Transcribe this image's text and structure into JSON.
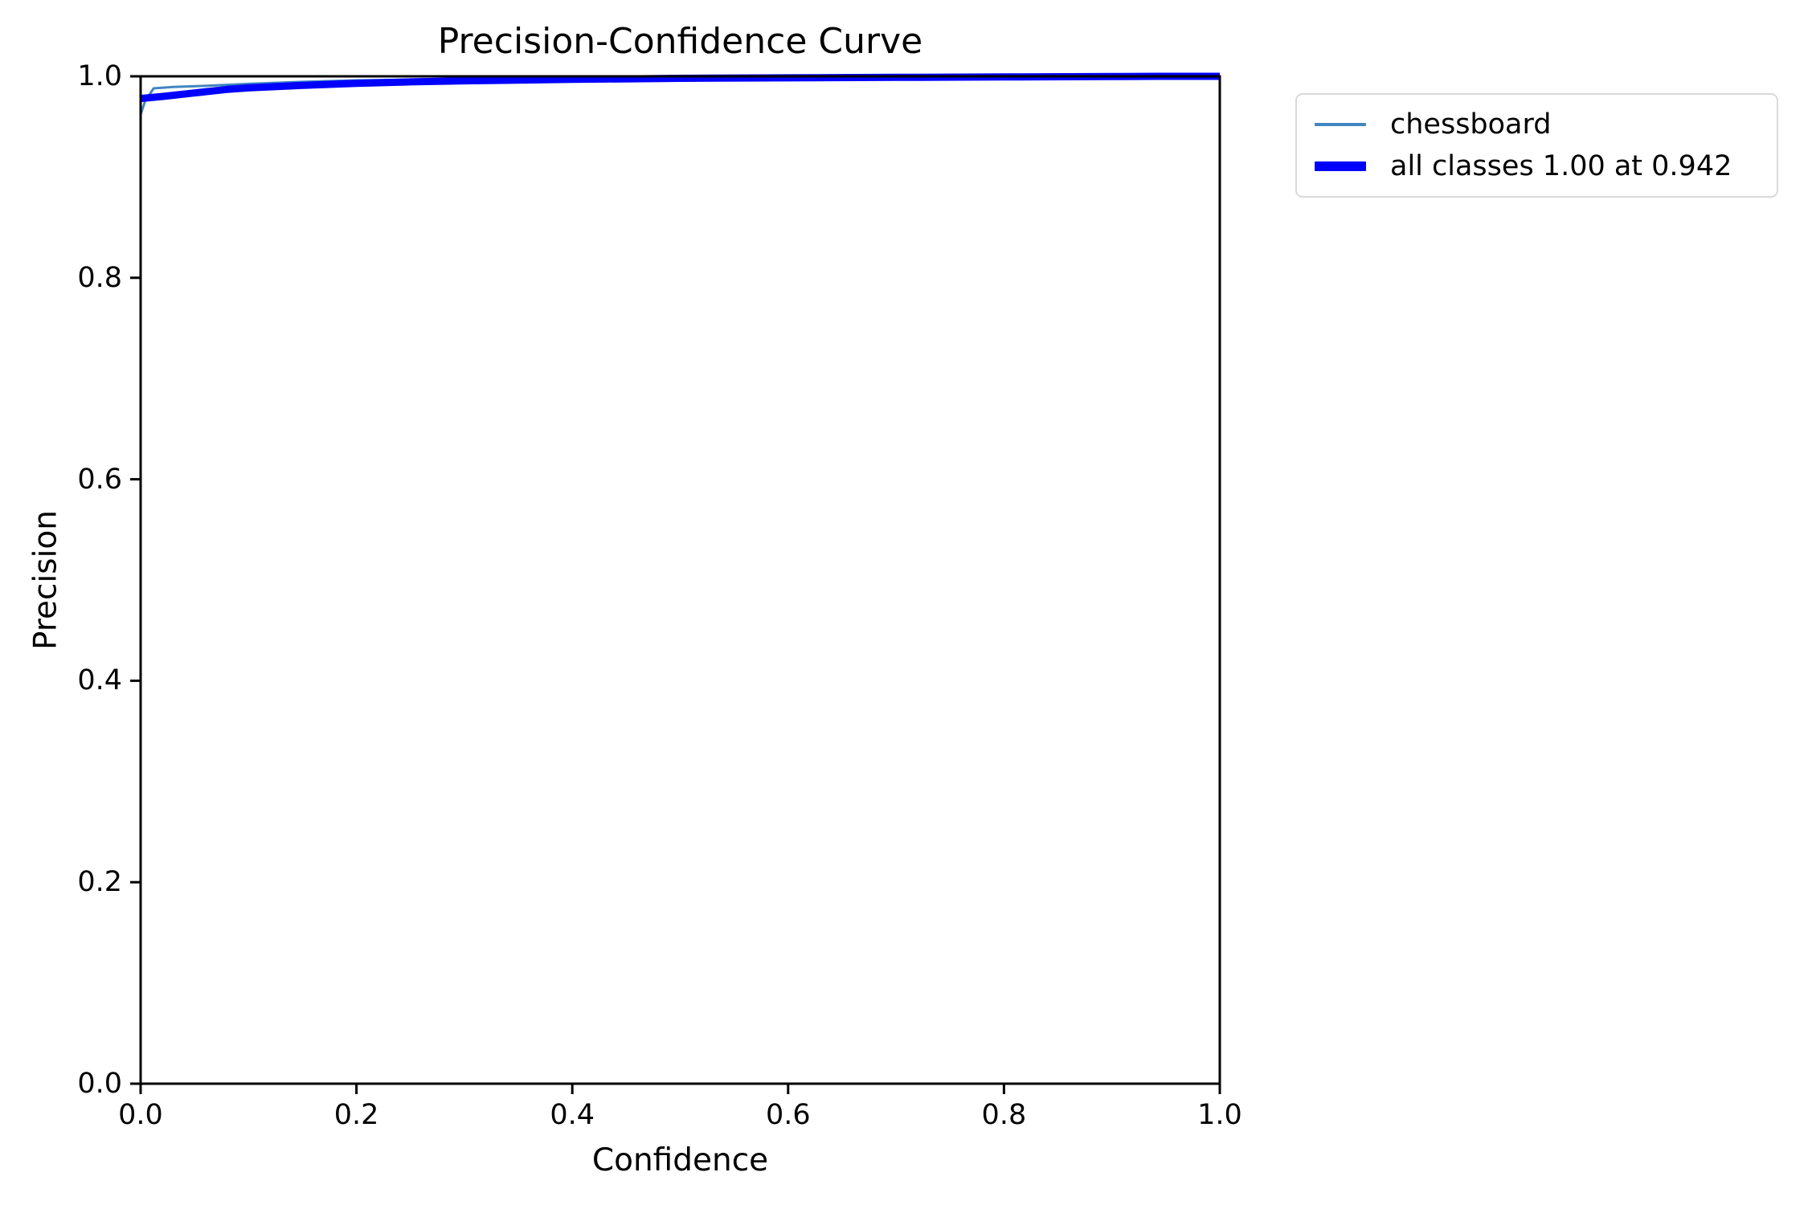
{
  "figure": {
    "background": "#ffffff"
  },
  "chart_data": {
    "type": "line",
    "title": "Precision-Confidence Curve",
    "xlabel": "Confidence",
    "ylabel": "Precision",
    "xlim": [
      0.0,
      1.0
    ],
    "ylim": [
      0.0,
      1.0
    ],
    "xtick_labels": [
      "0.0",
      "0.2",
      "0.4",
      "0.6",
      "0.8",
      "1.0"
    ],
    "ytick_labels": [
      "0.0",
      "0.2",
      "0.4",
      "0.6",
      "0.8",
      "1.0"
    ],
    "xticks": [
      0.0,
      0.2,
      0.4,
      0.6,
      0.8,
      1.0
    ],
    "yticks": [
      0.0,
      0.2,
      0.4,
      0.6,
      0.8,
      1.0
    ],
    "grid": false,
    "axis_color": "#000000",
    "legend_position": "outside-upper-right",
    "annotation": "all classes reach precision 1.00 at confidence 0.942",
    "series": [
      {
        "name": "chessboard",
        "color": "#4186c0",
        "linewidth": 3,
        "points": [
          [
            0.0,
            0.962
          ],
          [
            0.004,
            0.975
          ],
          [
            0.012,
            0.988
          ],
          [
            0.03,
            0.9895
          ],
          [
            0.06,
            0.9905
          ],
          [
            0.1,
            0.9925
          ],
          [
            0.15,
            0.9945
          ],
          [
            0.2,
            0.996
          ],
          [
            0.3,
            0.9975
          ],
          [
            0.4,
            0.998
          ],
          [
            0.5,
            0.9985
          ],
          [
            0.6,
            0.999
          ],
          [
            0.7,
            0.9993
          ],
          [
            0.8,
            0.9996
          ],
          [
            0.9,
            0.9999
          ],
          [
            0.942,
            1.0
          ],
          [
            1.0,
            1.0
          ]
        ]
      },
      {
        "name": "all classes 1.00 at 0.942",
        "color": "#0000ff",
        "linewidth": 9,
        "points": [
          [
            0.0,
            0.978
          ],
          [
            0.02,
            0.98
          ],
          [
            0.05,
            0.9835
          ],
          [
            0.08,
            0.987
          ],
          [
            0.1,
            0.9885
          ],
          [
            0.15,
            0.991
          ],
          [
            0.2,
            0.993
          ],
          [
            0.25,
            0.9945
          ],
          [
            0.3,
            0.9955
          ],
          [
            0.4,
            0.997
          ],
          [
            0.5,
            0.998
          ],
          [
            0.6,
            0.9985
          ],
          [
            0.7,
            0.999
          ],
          [
            0.8,
            0.9994
          ],
          [
            0.9,
            0.9998
          ],
          [
            0.942,
            1.0
          ],
          [
            1.0,
            1.0
          ]
        ]
      }
    ],
    "legend_entries": [
      {
        "label": "chessboard",
        "color": "#4186c0",
        "sample_thickness": 4
      },
      {
        "label": "all classes 1.00 at 0.942",
        "color": "#0000ff",
        "sample_thickness": 12
      }
    ]
  }
}
